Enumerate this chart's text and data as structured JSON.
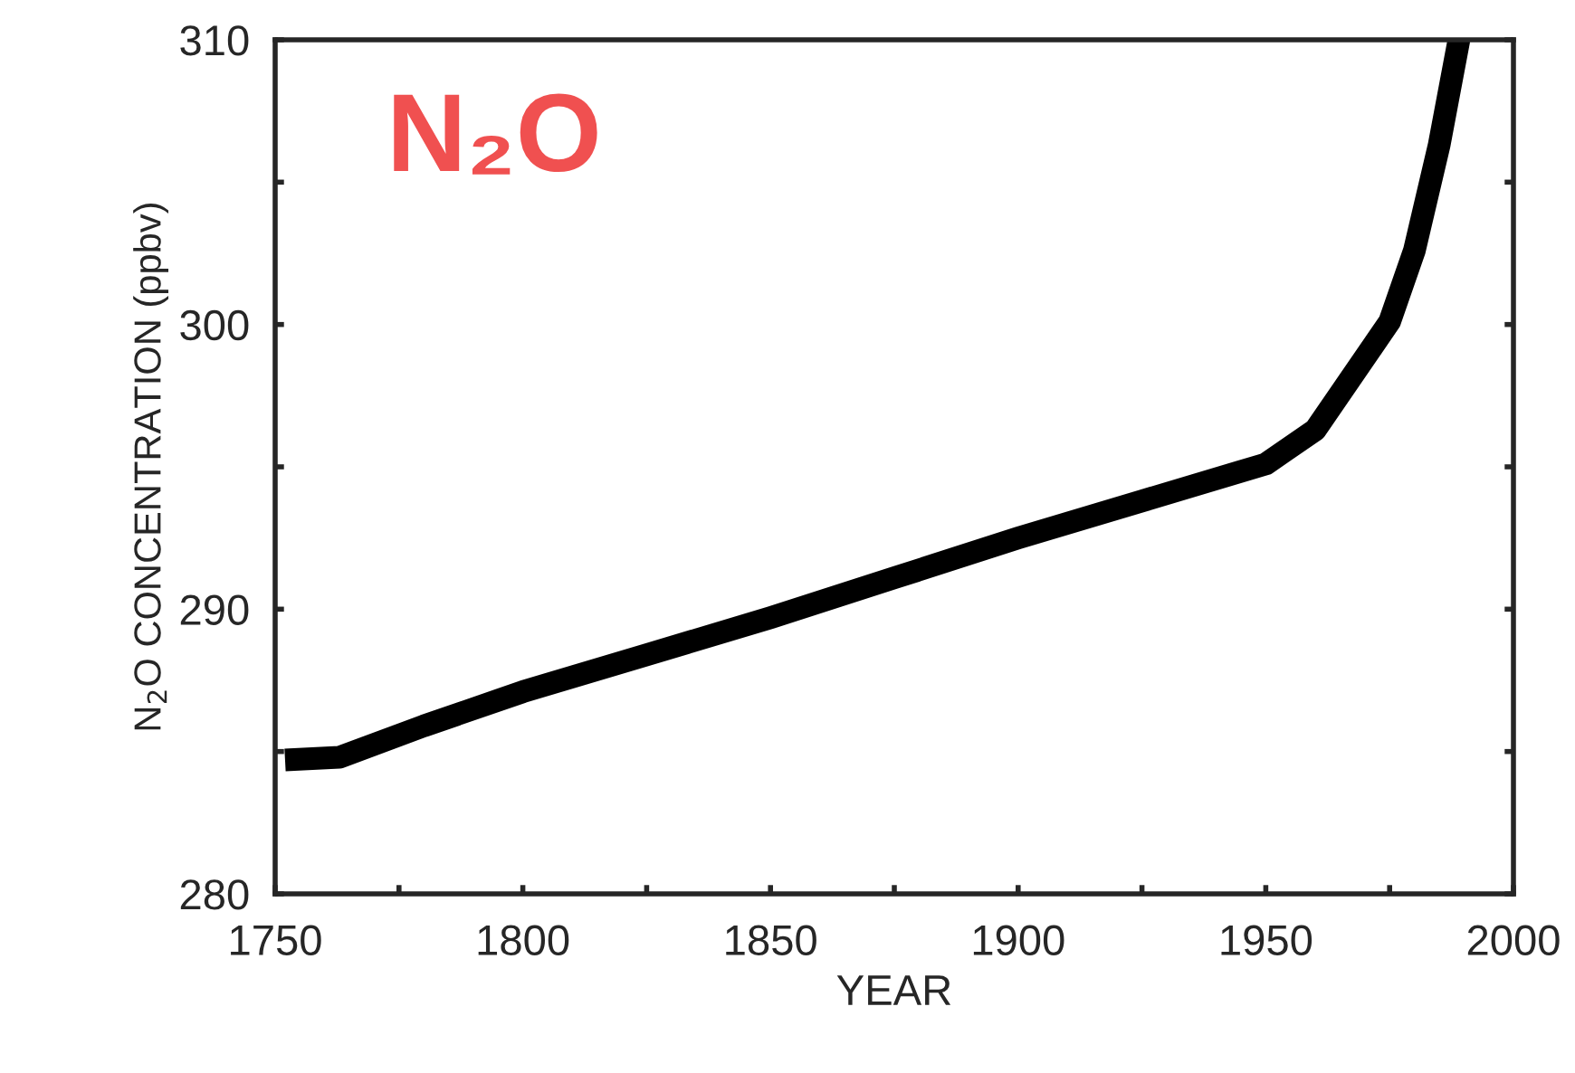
{
  "chart_data": {
    "type": "line",
    "xlabel": "YEAR",
    "ylabel": "N$_{2}$O CONCENTRATION (ppbv)",
    "annotations": [
      "N₂O"
    ],
    "x": [
      1752,
      1763,
      1780,
      1800,
      1825,
      1850,
      1875,
      1900,
      1925,
      1950,
      1960,
      1975,
      1980,
      1985,
      1989
    ],
    "series": [
      {
        "color": "#000000",
        "values": [
          284.7,
          284.8,
          285.9,
          287.1,
          288.4,
          289.7,
          291.1,
          292.5,
          293.8,
          295.1,
          296.3,
          300.1,
          302.6,
          306.3,
          310.0
        ]
      }
    ],
    "xlim": [
      1750,
      2000
    ],
    "ylim": [
      280,
      310
    ],
    "xticks": [
      1750,
      {
        "value": 1775,
        "label": null
      },
      1800,
      {
        "value": 1825,
        "label": null
      },
      1850,
      {
        "value": 1875,
        "label": null
      },
      1900,
      {
        "value": 1925,
        "label": null
      },
      1950,
      {
        "value": 1975,
        "label": null
      },
      2000
    ],
    "yticks": [
      280,
      {
        "value": 285,
        "label": null
      },
      290,
      {
        "value": 295,
        "label": null
      },
      300,
      {
        "value": 305,
        "label": null
      },
      310
    ],
    "grid": false,
    "legend": false,
    "marker": "none",
    "line_style": "solid"
  }
}
